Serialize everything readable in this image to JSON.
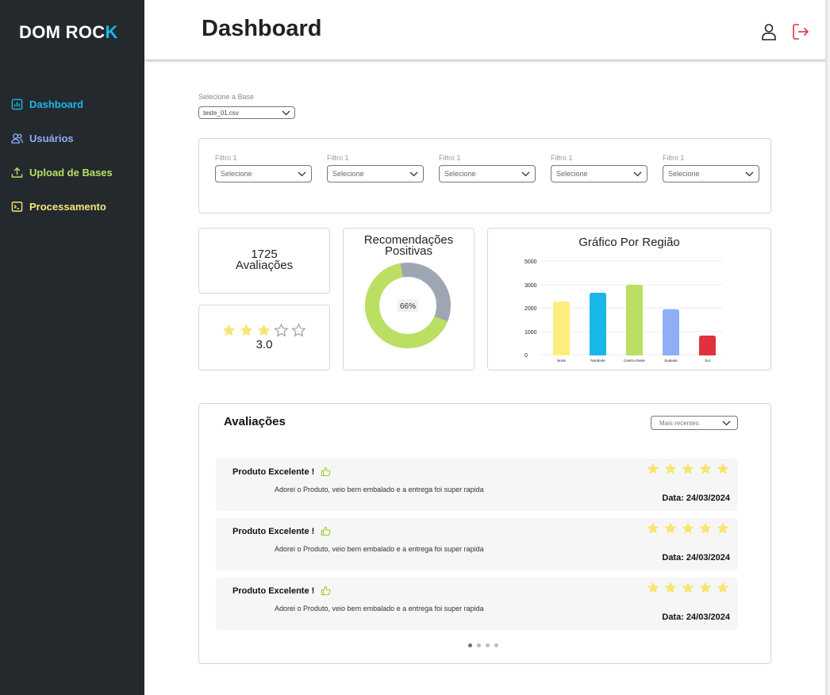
{
  "brand": {
    "logo_main": "DOM ROC",
    "logo_accent": "K"
  },
  "sidebar": {
    "items": [
      {
        "label": "Dashboard",
        "icon": "chart-square-icon",
        "color": "#19b8e9"
      },
      {
        "label": "Usuários",
        "icon": "users-icon",
        "color": "#8faef5"
      },
      {
        "label": "Upload de Bases",
        "icon": "upload-icon",
        "color": "#b9e062"
      },
      {
        "label": "Processamento",
        "icon": "terminal-icon",
        "color": "#f5e67a"
      }
    ]
  },
  "header": {
    "title": "Dashboard",
    "user_icon": "user-icon",
    "logout_icon": "logout-icon",
    "logout_color": "#d9363e"
  },
  "base": {
    "label": "Selecione a Base",
    "value": "teste_01.csv"
  },
  "filters": [
    {
      "label": "Filtro 1",
      "placeholder": "Selecione"
    },
    {
      "label": "Filtro 1",
      "placeholder": "Selecione"
    },
    {
      "label": "Filtro 1",
      "placeholder": "Selecione"
    },
    {
      "label": "Filtro 1",
      "placeholder": "Selecione"
    },
    {
      "label": "Filtro 1",
      "placeholder": "Selecione"
    }
  ],
  "kpi": {
    "count": "1725",
    "count_label": "Avaliações",
    "rating": "3.0",
    "rating_value": 3,
    "rating_max": 5
  },
  "recommend": {
    "title_line1": "Recomendações",
    "title_line2": "Positivas",
    "percent_label": "66%",
    "percent": 66,
    "positive_color": "#bbdf62",
    "negative_color": "#9ea6b4"
  },
  "chart_data": {
    "type": "bar",
    "title": "Gráfico Por Região",
    "categories": [
      "Norte",
      "Nordeste",
      "Centro-Oeste",
      "Sudeste",
      "Sul"
    ],
    "values": [
      2850,
      3320,
      3740,
      2450,
      1050
    ],
    "colors": [
      "#fbee7d",
      "#19b8e9",
      "#bbdf62",
      "#8faef5",
      "#e0313f"
    ],
    "ylim": [
      0,
      5000
    ],
    "yticks": [
      "5000",
      "3000",
      "2000",
      "1000",
      "0"
    ],
    "ytick_values": [
      5000,
      3000,
      2000,
      1000,
      0
    ],
    "grid": true
  },
  "reviews": {
    "title": "Avaliações",
    "sort": "Mais recentes",
    "items": [
      {
        "title": "Produto Excelente !",
        "text": "Adorei o Produto, veio bem embalado e a entrega foi super rapida",
        "date": "Data: 24/03/2024",
        "stars": 5
      },
      {
        "title": "Produto Excelente !",
        "text": "Adorei o Produto, veio bem embalado e a entrega foi super rapida",
        "date": "Data: 24/03/2024",
        "stars": 5
      },
      {
        "title": "Produto Excelente !",
        "text": "Adorei o Produto, veio bem embalado e a entrega foi super rapida",
        "date": "Data: 24/03/2024",
        "stars": 5
      }
    ],
    "pages": 4,
    "current_page": 1
  }
}
